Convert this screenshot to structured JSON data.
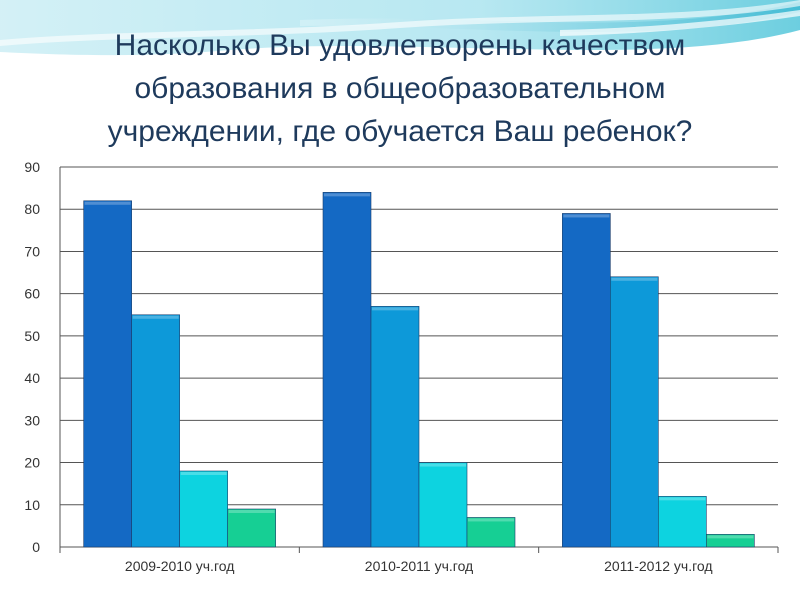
{
  "slide": {
    "title_lines": [
      "Насколько Вы удовлетворены качеством",
      "образования в общеобразовательном",
      "учреждении, где обучается Ваш ребенок?"
    ]
  },
  "colors": {
    "title": "#1e3a5c",
    "series": [
      "#1469c4",
      "#0d99d9",
      "#0dd3e0",
      "#16cf94"
    ],
    "grid": "#555555",
    "axis_text": "#333333"
  },
  "chart_data": {
    "type": "bar",
    "title": "",
    "xlabel": "",
    "ylabel": "",
    "ylim": [
      0,
      90
    ],
    "yticks": [
      0,
      10,
      20,
      30,
      40,
      50,
      60,
      70,
      80,
      90
    ],
    "grid": true,
    "legend": "none",
    "categories": [
      "2009-2010 уч.год",
      "2010-2011 уч.год",
      "2011-2012 уч.год"
    ],
    "series": [
      {
        "values": [
          82,
          84,
          79
        ]
      },
      {
        "values": [
          55,
          57,
          64
        ]
      },
      {
        "values": [
          18,
          20,
          12
        ]
      },
      {
        "values": [
          9,
          7,
          3
        ]
      }
    ]
  }
}
